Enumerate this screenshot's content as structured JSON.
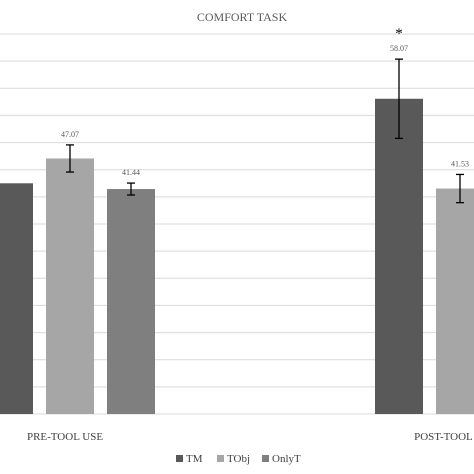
{
  "chart_data": {
    "type": "bar",
    "title": "COMFORT TASK",
    "categories": [
      "PRE-TOOL USE",
      "POST-TOOL USE"
    ],
    "series": [
      {
        "name": "TM",
        "color": "#595959",
        "values": [
          42.5,
          58.07
        ],
        "labels": [
          "",
          "58.07"
        ],
        "errors": [
          null,
          7.3
        ]
      },
      {
        "name": "TObj",
        "color": "#a6a6a6",
        "values": [
          47.07,
          41.53
        ],
        "labels": [
          "47.07",
          "41.53"
        ],
        "errors": [
          2.5,
          2.6
        ]
      },
      {
        "name": "OnlyT",
        "color": "#7f7f7f",
        "values": [
          41.44,
          null
        ],
        "labels": [
          "41.44",
          ""
        ],
        "errors": [
          1.1,
          null
        ]
      }
    ],
    "annotations": [
      {
        "text": "*",
        "category": 1,
        "series": 0
      }
    ],
    "ylim": [
      0,
      70
    ],
    "grid": true,
    "legend": "bottom"
  }
}
